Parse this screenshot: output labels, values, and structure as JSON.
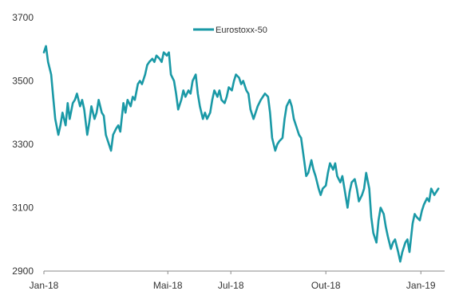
{
  "colors": {
    "series": "#1a99a6",
    "axis": "#8a8a8a"
  },
  "chart_data": {
    "type": "line",
    "grid": false,
    "legend": {
      "position": "top-center"
    },
    "x_ticks": [
      "Jan-18",
      "Mai-18",
      "Jul-18",
      "Out-18",
      "Jan-19"
    ],
    "y_ticks": [
      "3700",
      "3500",
      "3300",
      "3100",
      "2900"
    ],
    "ylim": [
      2900,
      3700
    ],
    "series": [
      {
        "name": "Eurostoxx-50",
        "points": [
          [
            "2018-01-01",
            3590
          ],
          [
            "2018-01-03",
            3610
          ],
          [
            "2018-01-05",
            3560
          ],
          [
            "2018-01-08",
            3520
          ],
          [
            "2018-01-10",
            3450
          ],
          [
            "2018-01-12",
            3380
          ],
          [
            "2018-01-15",
            3330
          ],
          [
            "2018-01-17",
            3360
          ],
          [
            "2018-01-19",
            3400
          ],
          [
            "2018-01-22",
            3360
          ],
          [
            "2018-01-24",
            3430
          ],
          [
            "2018-01-26",
            3380
          ],
          [
            "2018-01-29",
            3430
          ],
          [
            "2018-01-31",
            3440
          ],
          [
            "2018-02-02",
            3460
          ],
          [
            "2018-02-05",
            3420
          ],
          [
            "2018-02-07",
            3440
          ],
          [
            "2018-02-09",
            3410
          ],
          [
            "2018-02-12",
            3330
          ],
          [
            "2018-02-14",
            3370
          ],
          [
            "2018-02-16",
            3420
          ],
          [
            "2018-02-19",
            3380
          ],
          [
            "2018-02-21",
            3400
          ],
          [
            "2018-02-23",
            3440
          ],
          [
            "2018-02-26",
            3400
          ],
          [
            "2018-02-28",
            3390
          ],
          [
            "2018-03-02",
            3330
          ],
          [
            "2018-03-05",
            3300
          ],
          [
            "2018-03-07",
            3280
          ],
          [
            "2018-03-09",
            3330
          ],
          [
            "2018-03-12",
            3350
          ],
          [
            "2018-03-14",
            3360
          ],
          [
            "2018-03-16",
            3340
          ],
          [
            "2018-03-19",
            3430
          ],
          [
            "2018-03-21",
            3400
          ],
          [
            "2018-03-23",
            3440
          ],
          [
            "2018-03-26",
            3420
          ],
          [
            "2018-03-28",
            3450
          ],
          [
            "2018-03-30",
            3440
          ],
          [
            "2018-04-02",
            3490
          ],
          [
            "2018-04-04",
            3500
          ],
          [
            "2018-04-06",
            3490
          ],
          [
            "2018-04-09",
            3520
          ],
          [
            "2018-04-11",
            3550
          ],
          [
            "2018-04-13",
            3560
          ],
          [
            "2018-04-16",
            3570
          ],
          [
            "2018-04-18",
            3560
          ],
          [
            "2018-04-20",
            3580
          ],
          [
            "2018-04-23",
            3570
          ],
          [
            "2018-04-25",
            3560
          ],
          [
            "2018-04-27",
            3590
          ],
          [
            "2018-04-30",
            3580
          ],
          [
            "2018-05-02",
            3590
          ],
          [
            "2018-05-04",
            3520
          ],
          [
            "2018-05-07",
            3500
          ],
          [
            "2018-05-09",
            3460
          ],
          [
            "2018-05-11",
            3410
          ],
          [
            "2018-05-14",
            3440
          ],
          [
            "2018-05-16",
            3470
          ],
          [
            "2018-05-18",
            3450
          ],
          [
            "2018-05-21",
            3470
          ],
          [
            "2018-05-23",
            3460
          ],
          [
            "2018-05-25",
            3500
          ],
          [
            "2018-05-28",
            3520
          ],
          [
            "2018-05-30",
            3460
          ],
          [
            "2018-06-01",
            3420
          ],
          [
            "2018-06-04",
            3380
          ],
          [
            "2018-06-06",
            3400
          ],
          [
            "2018-06-08",
            3380
          ],
          [
            "2018-06-11",
            3400
          ],
          [
            "2018-06-13",
            3440
          ],
          [
            "2018-06-15",
            3470
          ],
          [
            "2018-06-18",
            3450
          ],
          [
            "2018-06-20",
            3470
          ],
          [
            "2018-06-22",
            3440
          ],
          [
            "2018-06-25",
            3430
          ],
          [
            "2018-06-27",
            3450
          ],
          [
            "2018-06-29",
            3480
          ],
          [
            "2018-07-02",
            3470
          ],
          [
            "2018-07-04",
            3500
          ],
          [
            "2018-07-06",
            3520
          ],
          [
            "2018-07-09",
            3510
          ],
          [
            "2018-07-11",
            3490
          ],
          [
            "2018-07-13",
            3500
          ],
          [
            "2018-07-16",
            3470
          ],
          [
            "2018-07-18",
            3460
          ],
          [
            "2018-07-20",
            3410
          ],
          [
            "2018-07-23",
            3380
          ],
          [
            "2018-07-25",
            3400
          ],
          [
            "2018-07-27",
            3420
          ],
          [
            "2018-07-30",
            3440
          ],
          [
            "2018-08-01",
            3450
          ],
          [
            "2018-08-03",
            3460
          ],
          [
            "2018-08-06",
            3450
          ],
          [
            "2018-08-08",
            3400
          ],
          [
            "2018-08-10",
            3320
          ],
          [
            "2018-08-13",
            3280
          ],
          [
            "2018-08-15",
            3300
          ],
          [
            "2018-08-17",
            3310
          ],
          [
            "2018-08-20",
            3320
          ],
          [
            "2018-08-22",
            3380
          ],
          [
            "2018-08-24",
            3420
          ],
          [
            "2018-08-27",
            3440
          ],
          [
            "2018-08-29",
            3420
          ],
          [
            "2018-08-31",
            3380
          ],
          [
            "2018-09-03",
            3350
          ],
          [
            "2018-09-05",
            3330
          ],
          [
            "2018-09-07",
            3320
          ],
          [
            "2018-09-10",
            3250
          ],
          [
            "2018-09-12",
            3200
          ],
          [
            "2018-09-14",
            3210
          ],
          [
            "2018-09-17",
            3250
          ],
          [
            "2018-09-19",
            3220
          ],
          [
            "2018-09-21",
            3200
          ],
          [
            "2018-09-24",
            3160
          ],
          [
            "2018-09-26",
            3140
          ],
          [
            "2018-09-28",
            3160
          ],
          [
            "2018-10-01",
            3170
          ],
          [
            "2018-10-03",
            3210
          ],
          [
            "2018-10-05",
            3240
          ],
          [
            "2018-10-08",
            3220
          ],
          [
            "2018-10-10",
            3240
          ],
          [
            "2018-10-12",
            3200
          ],
          [
            "2018-10-15",
            3180
          ],
          [
            "2018-10-17",
            3200
          ],
          [
            "2018-10-19",
            3160
          ],
          [
            "2018-10-22",
            3100
          ],
          [
            "2018-10-24",
            3150
          ],
          [
            "2018-10-26",
            3180
          ],
          [
            "2018-10-29",
            3190
          ],
          [
            "2018-10-31",
            3160
          ],
          [
            "2018-11-02",
            3120
          ],
          [
            "2018-11-05",
            3140
          ],
          [
            "2018-11-07",
            3160
          ],
          [
            "2018-11-09",
            3210
          ],
          [
            "2018-11-12",
            3160
          ],
          [
            "2018-11-14",
            3070
          ],
          [
            "2018-11-16",
            3020
          ],
          [
            "2018-11-19",
            2990
          ],
          [
            "2018-11-21",
            3060
          ],
          [
            "2018-11-23",
            3100
          ],
          [
            "2018-11-26",
            3080
          ],
          [
            "2018-11-28",
            3040
          ],
          [
            "2018-11-30",
            3010
          ],
          [
            "2018-12-03",
            2970
          ],
          [
            "2018-12-05",
            2990
          ],
          [
            "2018-12-07",
            3000
          ],
          [
            "2018-12-10",
            2960
          ],
          [
            "2018-12-12",
            2930
          ],
          [
            "2018-12-14",
            2960
          ],
          [
            "2018-12-17",
            2990
          ],
          [
            "2018-12-19",
            3000
          ],
          [
            "2018-12-21",
            2960
          ],
          [
            "2018-12-24",
            3050
          ],
          [
            "2018-12-26",
            3080
          ],
          [
            "2018-12-28",
            3070
          ],
          [
            "2018-12-31",
            3060
          ],
          [
            "2019-01-02",
            3090
          ],
          [
            "2019-01-04",
            3110
          ],
          [
            "2019-01-07",
            3130
          ],
          [
            "2019-01-09",
            3120
          ],
          [
            "2019-01-11",
            3160
          ],
          [
            "2019-01-14",
            3140
          ],
          [
            "2019-01-16",
            3150
          ],
          [
            "2019-01-18",
            3160
          ]
        ]
      }
    ]
  }
}
